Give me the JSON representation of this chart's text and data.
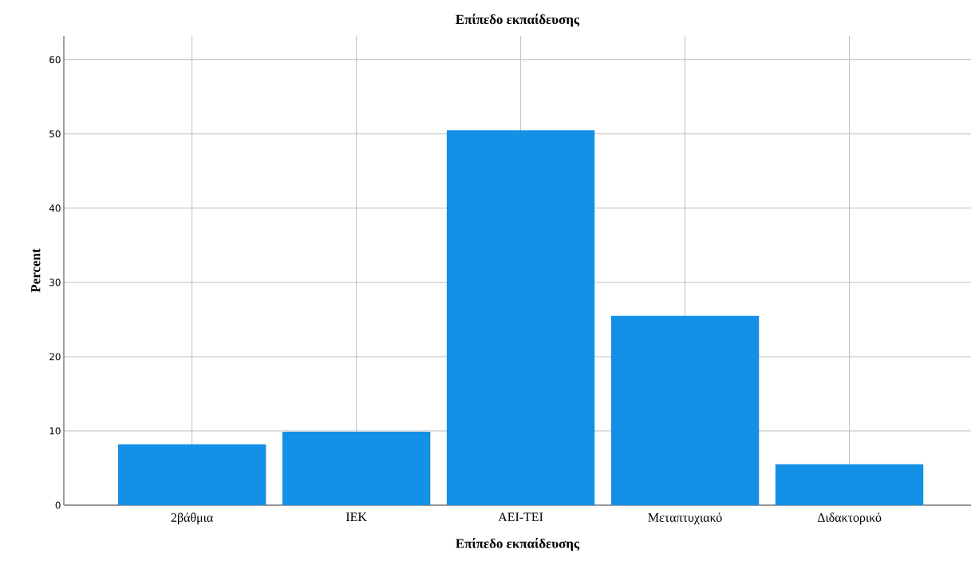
{
  "chart_data": {
    "type": "bar",
    "title": "Επίπεδο εκπαίδευσης",
    "xlabel": "Επίπεδο εκπαίδευσης",
    "ylabel": "Percent",
    "categories": [
      "2βάθμια",
      "ΙΕΚ",
      "ΑΕΙ-ΤΕΙ",
      "Μεταπτυχιακό",
      "Διδακτορικό"
    ],
    "values": [
      8.2,
      9.9,
      50.5,
      25.5,
      5.5
    ],
    "color": "#1490e6",
    "ylim": [
      0,
      63.2
    ],
    "yticks": [
      0,
      10,
      20,
      30,
      40,
      50,
      60
    ],
    "grid": true
  }
}
